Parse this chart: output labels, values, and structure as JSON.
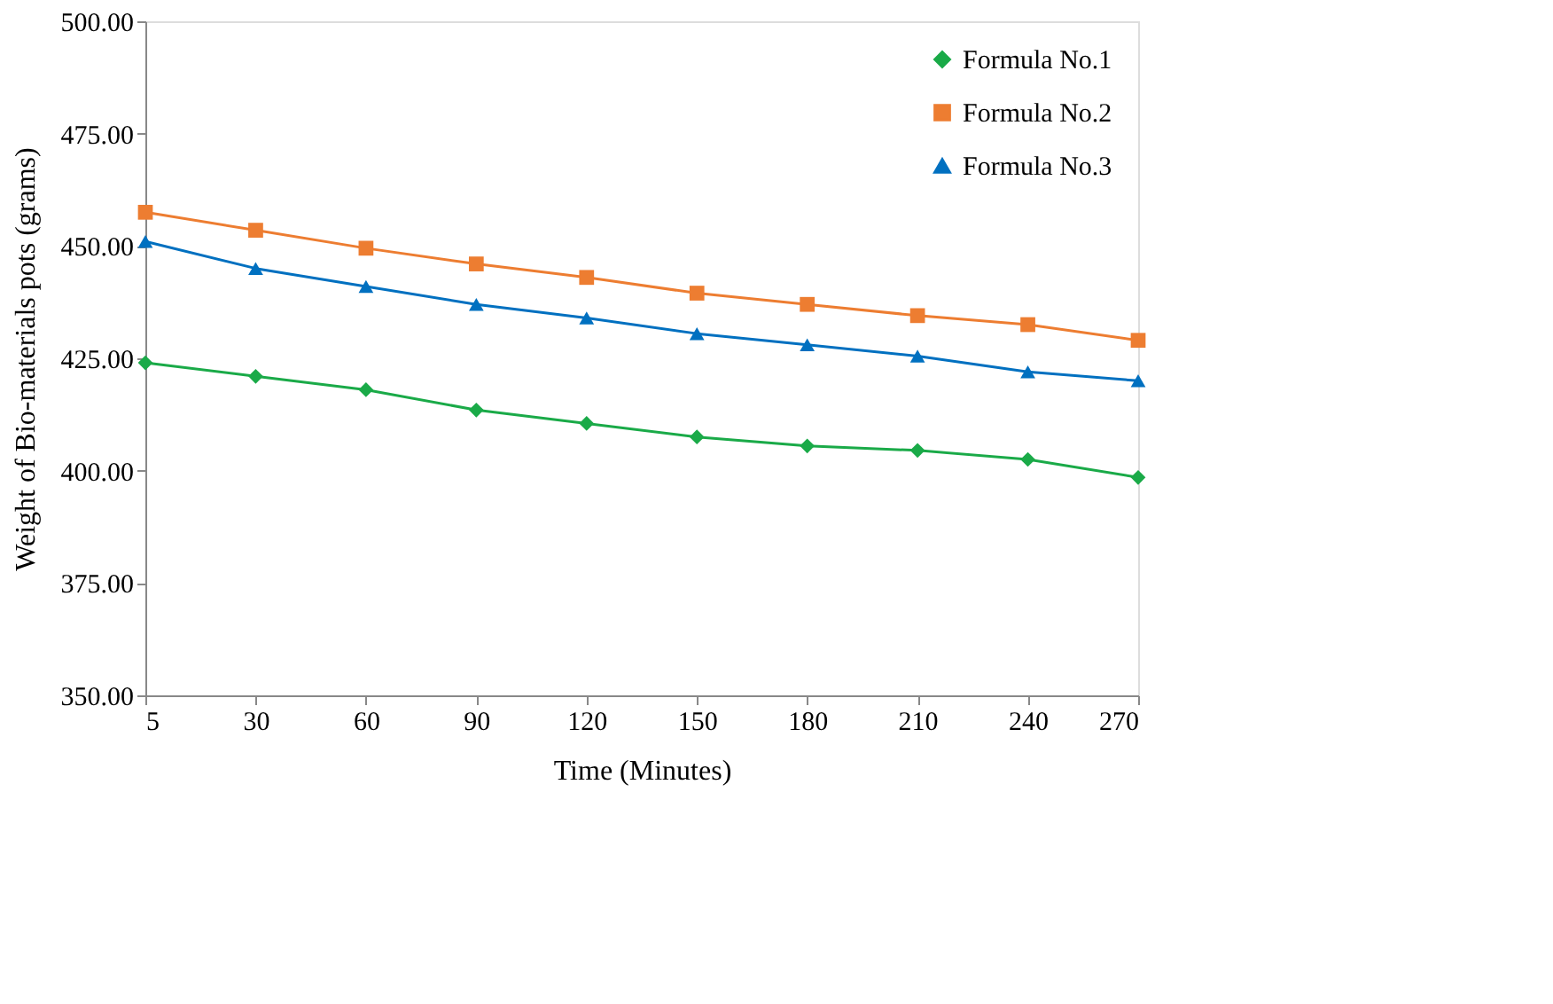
{
  "chart_data": {
    "type": "line",
    "xlabel": "Time (Minutes)",
    "ylabel": "Weight of Bio-materials pots (grams)",
    "categories": [
      "5",
      "30",
      "60",
      "90",
      "120",
      "150",
      "180",
      "210",
      "240",
      "270"
    ],
    "series": [
      {
        "name": "Formula No.1",
        "color": "#1aaa48",
        "marker": "diamond",
        "values": [
          424,
          421,
          418,
          413.5,
          410.5,
          407.5,
          405.5,
          404.5,
          402.5,
          398.5
        ]
      },
      {
        "name": "Formula No.2",
        "color": "#ed7d31",
        "marker": "square",
        "values": [
          457.5,
          453.5,
          449.5,
          446,
          443,
          439.5,
          437,
          434.5,
          432.5,
          429
        ]
      },
      {
        "name": "Formula No.3",
        "color": "#0070c0",
        "marker": "triangle",
        "values": [
          451,
          445,
          441,
          437,
          434,
          430.5,
          428,
          425.5,
          422,
          420
        ]
      }
    ],
    "ylim": [
      350,
      500
    ],
    "yticks": [
      {
        "value": 350,
        "label": "350.00"
      },
      {
        "value": 375,
        "label": "375.00"
      },
      {
        "value": 400,
        "label": "400.00"
      },
      {
        "value": 425,
        "label": "425.00"
      },
      {
        "value": 450,
        "label": "450.00"
      },
      {
        "value": 475,
        "label": "475.00"
      },
      {
        "value": 500,
        "label": "500.00"
      }
    ],
    "grid": false,
    "legend": "top right",
    "line_style": "solid"
  }
}
